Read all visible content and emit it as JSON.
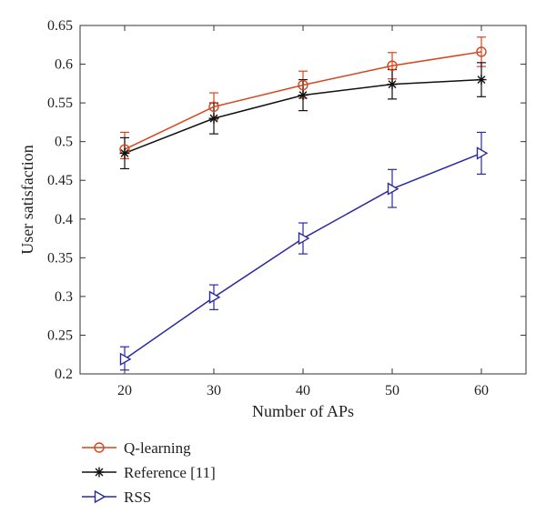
{
  "chart_data": {
    "type": "line",
    "title": "",
    "xlabel": "Number of APs",
    "ylabel": "User satisfaction",
    "x": [
      20,
      30,
      40,
      50,
      60
    ],
    "xticks": [
      "20",
      "30",
      "40",
      "50",
      "60"
    ],
    "yticks": [
      "0.2",
      "0.25",
      "0.3",
      "0.35",
      "0.4",
      "0.45",
      "0.5",
      "0.55",
      "0.6",
      "0.65"
    ],
    "xlim": [
      15,
      65
    ],
    "ylim": [
      0.2,
      0.65
    ],
    "grid": false,
    "legend_position": "below-plot-left",
    "series": [
      {
        "name": "Q-learning",
        "color": "#d9441c",
        "marker": "circle",
        "values": [
          0.49,
          0.545,
          0.573,
          0.598,
          0.616
        ],
        "err_low": [
          0.478,
          0.528,
          0.556,
          0.581,
          0.597
        ],
        "err_high": [
          0.512,
          0.563,
          0.591,
          0.615,
          0.635
        ]
      },
      {
        "name": "Reference [11]",
        "color": "#111111",
        "marker": "asterisk",
        "values": [
          0.485,
          0.53,
          0.56,
          0.574,
          0.58
        ],
        "err_low": [
          0.465,
          0.51,
          0.54,
          0.555,
          0.558
        ],
        "err_high": [
          0.505,
          0.55,
          0.58,
          0.593,
          0.602
        ]
      },
      {
        "name": "RSS",
        "color": "#2a2aa0",
        "marker": "triangle-right",
        "values": [
          0.219,
          0.299,
          0.375,
          0.439,
          0.485
        ],
        "err_low": [
          0.205,
          0.283,
          0.355,
          0.415,
          0.458
        ],
        "err_high": [
          0.235,
          0.315,
          0.395,
          0.464,
          0.512
        ]
      }
    ]
  }
}
